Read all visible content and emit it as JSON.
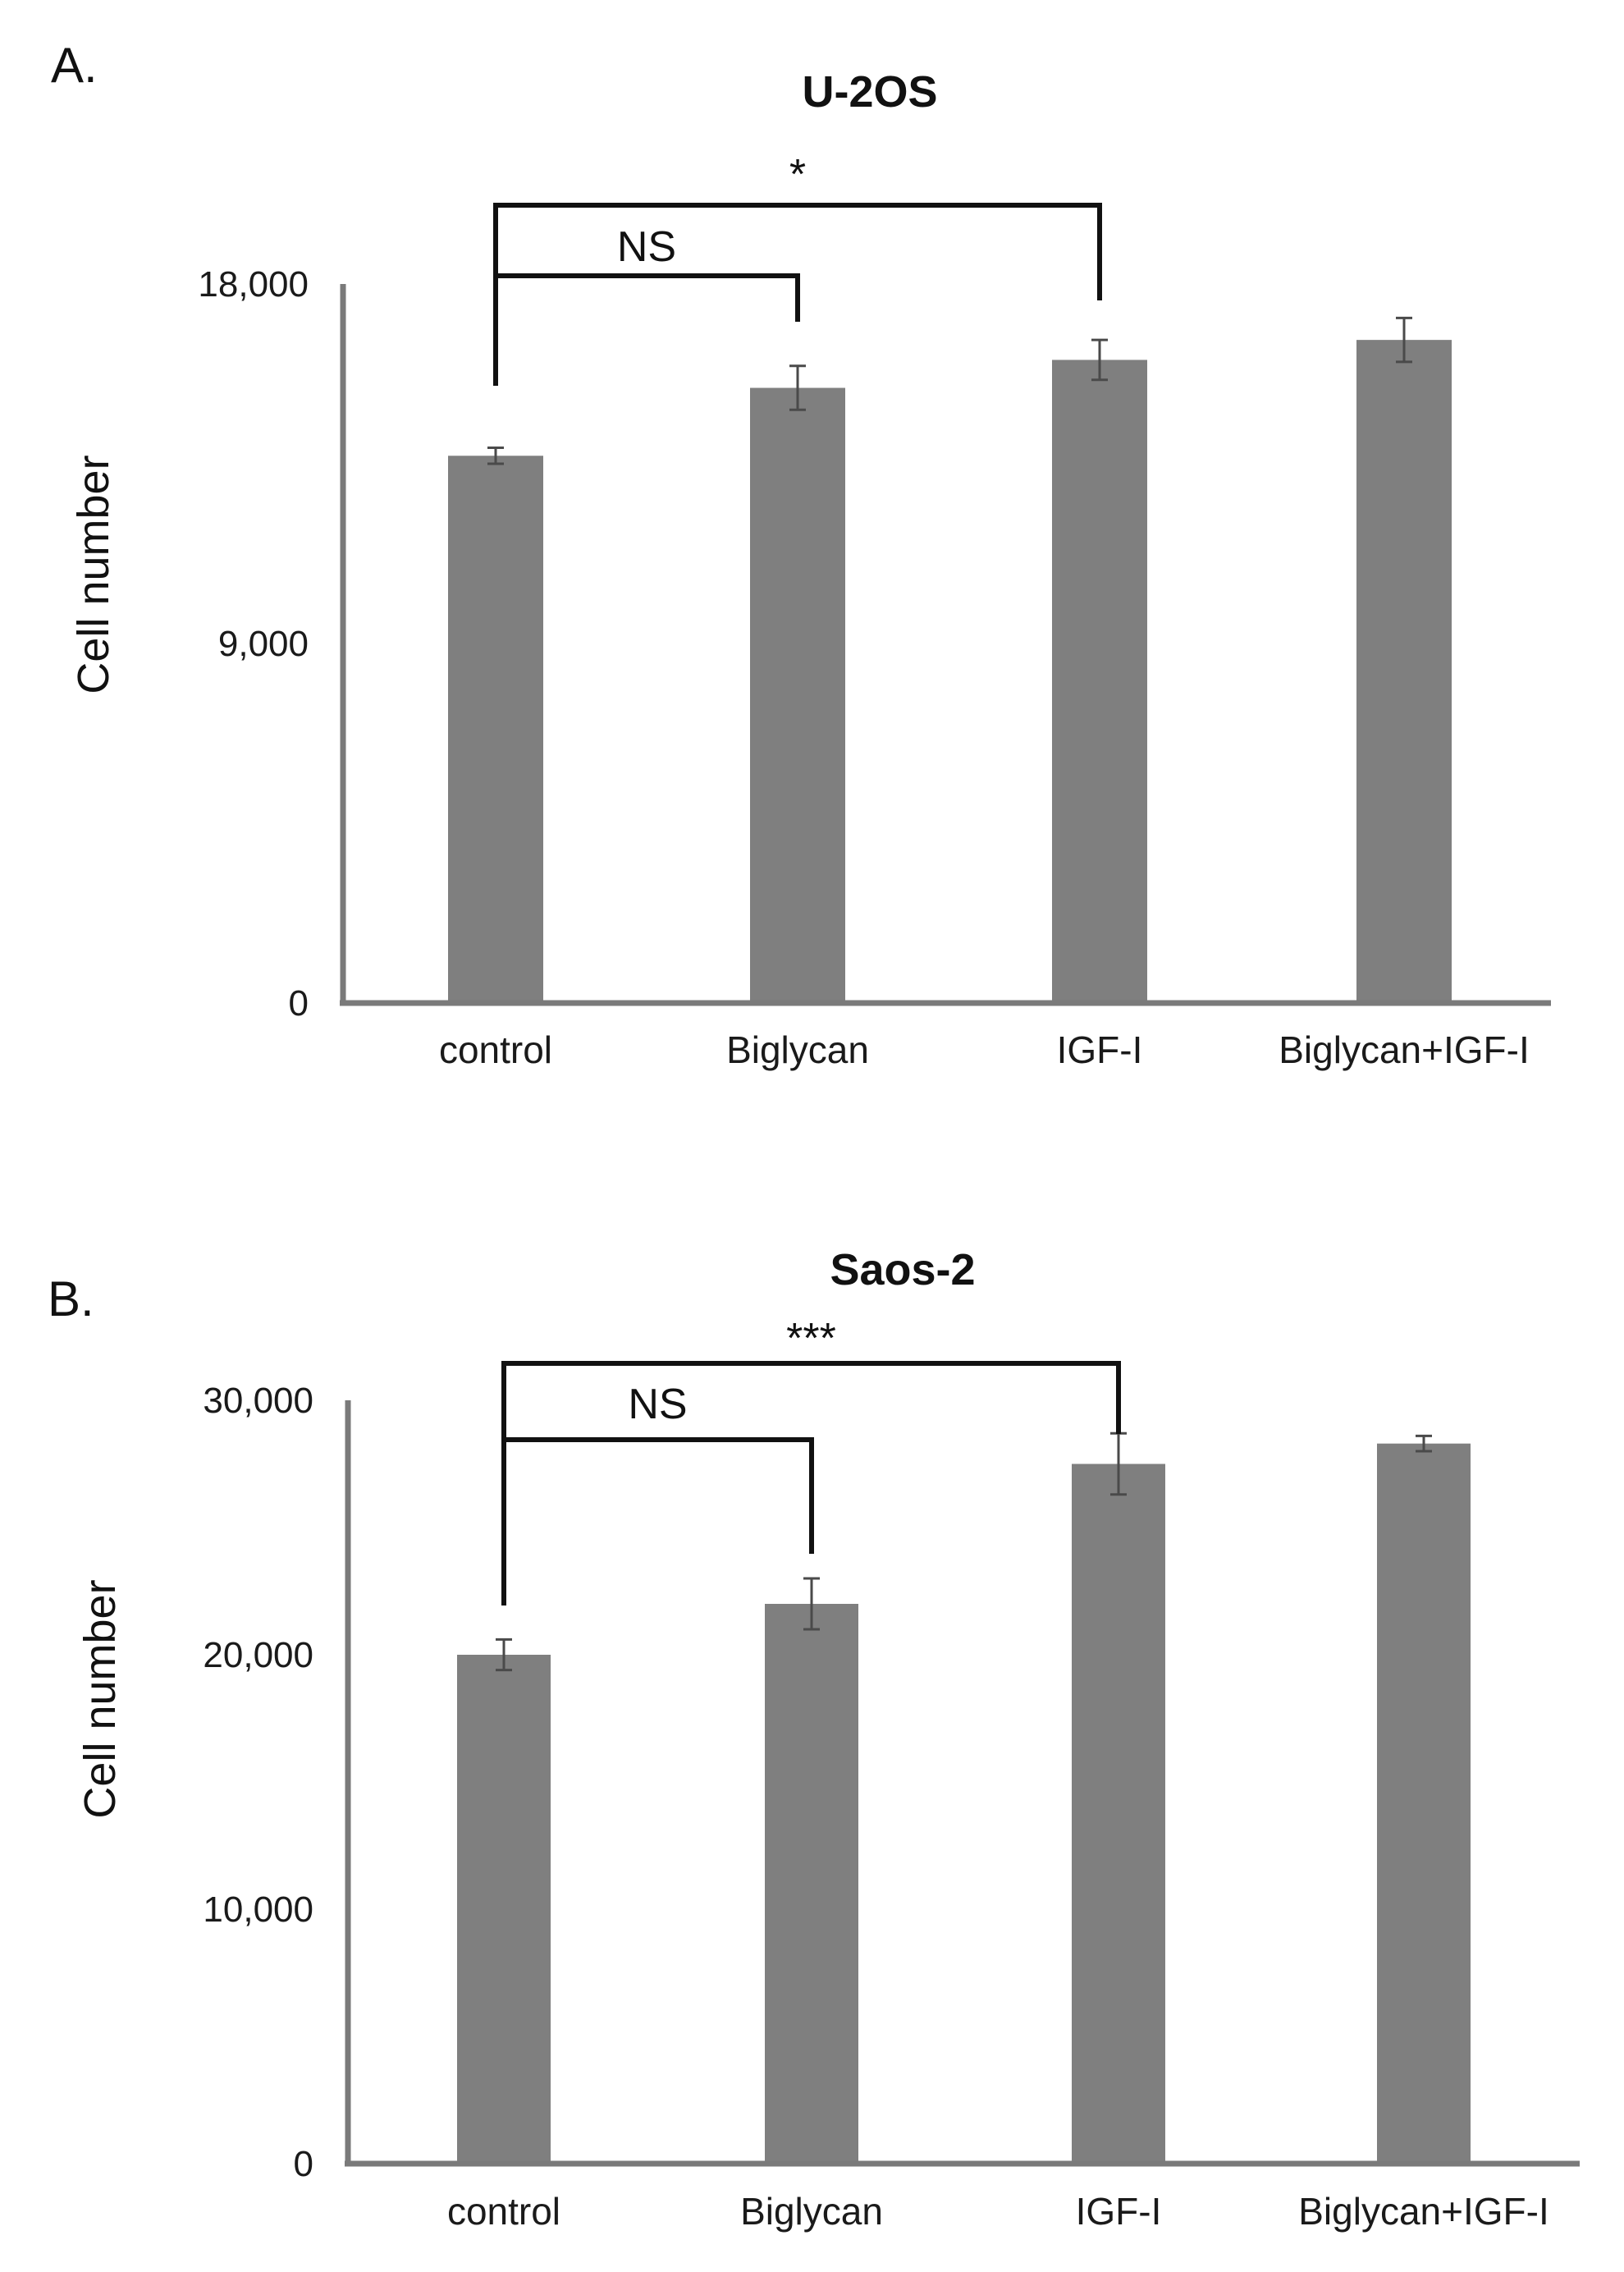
{
  "chart_data": [
    {
      "panel": "A.",
      "type": "bar",
      "title": "U-2OS",
      "ylabel": "Cell number",
      "xlabel": "",
      "ylim": [
        0,
        18000
      ],
      "yticks": [
        0,
        9000,
        18000
      ],
      "ytick_labels": [
        "0",
        "9,000",
        "18,000"
      ],
      "categories": [
        "control",
        "Biglycan",
        "IGF-I",
        "Biglycan+IGF-I"
      ],
      "values": [
        13700,
        15400,
        16100,
        16600
      ],
      "errors": [
        200,
        550,
        500,
        550
      ],
      "significance": [
        {
          "from": 0,
          "to": 2,
          "label": "*"
        },
        {
          "from": 0,
          "to": 1,
          "label": "NS"
        }
      ],
      "grid": false
    },
    {
      "panel": "B.",
      "type": "bar",
      "title": "Saos-2",
      "ylabel": "Cell number",
      "xlabel": "",
      "ylim": [
        0,
        30000
      ],
      "yticks": [
        0,
        10000,
        20000,
        30000
      ],
      "ytick_labels": [
        "0",
        "10,000",
        "20,000",
        "30,000"
      ],
      "categories": [
        "control",
        "Biglycan",
        "IGF-I",
        "Biglycan+IGF-I"
      ],
      "values": [
        20000,
        22000,
        27500,
        28300
      ],
      "errors": [
        600,
        1000,
        1200,
        300
      ],
      "significance": [
        {
          "from": 0,
          "to": 2,
          "label": "***"
        },
        {
          "from": 0,
          "to": 1,
          "label": "NS"
        }
      ],
      "grid": false
    }
  ]
}
